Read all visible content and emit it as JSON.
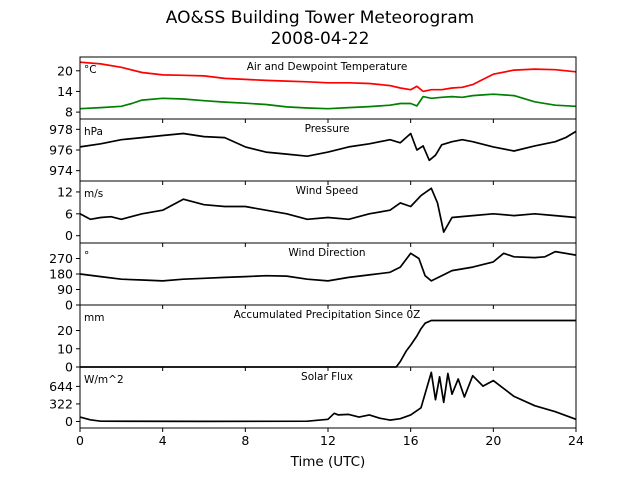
{
  "title": "AO&SS Building Tower Meteorogram",
  "subtitle": "2008-04-22",
  "xlabel": "Time (UTC)",
  "colors": {
    "temperature": "#ff0000",
    "dewpoint": "#008000",
    "default": "#000000"
  },
  "chart_data": [
    {
      "type": "line",
      "title": "Air and Dewpoint Temperature",
      "unit_label": "°C",
      "xlim": [
        0,
        24
      ],
      "ylim": [
        6,
        24
      ],
      "yticks": [
        8,
        14,
        20
      ],
      "series": [
        {
          "color": "#ff0000",
          "x": [
            0,
            1,
            2,
            3,
            4,
            5,
            6,
            7,
            8,
            9,
            10,
            11,
            12,
            13,
            14,
            15,
            15.5,
            16,
            16.3,
            16.6,
            17,
            17.5,
            18,
            18.5,
            19,
            19.5,
            20,
            21,
            22,
            23,
            24
          ],
          "y": [
            22.5,
            22,
            21,
            19.5,
            18.8,
            18.7,
            18.5,
            17.8,
            17.5,
            17.2,
            17,
            16.8,
            16.5,
            16.5,
            16.3,
            15.7,
            15,
            14.5,
            15.5,
            14,
            14.5,
            14.5,
            15,
            15.2,
            16,
            17.5,
            19,
            20.2,
            20.5,
            20.3,
            19.7
          ]
        },
        {
          "color": "#008000",
          "x": [
            0,
            1,
            2,
            2.5,
            3,
            4,
            5,
            6,
            7,
            8,
            9,
            10,
            11,
            12,
            13,
            14,
            15,
            15.5,
            16,
            16.3,
            16.6,
            17,
            17.5,
            18,
            18.5,
            19,
            19.5,
            20,
            21,
            22,
            23,
            24
          ],
          "y": [
            9,
            9.3,
            9.7,
            10.5,
            11.5,
            12,
            11.8,
            11.3,
            10.9,
            10.6,
            10.2,
            9.5,
            9.2,
            9,
            9.3,
            9.6,
            10,
            10.5,
            10.5,
            9.8,
            12.5,
            12,
            12.3,
            12.5,
            12.3,
            12.8,
            13,
            13.2,
            12.8,
            11,
            10,
            9.7
          ]
        }
      ]
    },
    {
      "type": "line",
      "title": "Pressure",
      "unit_label": "hPa",
      "xlim": [
        0,
        24
      ],
      "ylim": [
        973,
        979
      ],
      "yticks": [
        974,
        976,
        978
      ],
      "series": [
        {
          "color": "#000000",
          "x": [
            0,
            1,
            2,
            3,
            4,
            5,
            6,
            7,
            8,
            9,
            10,
            11,
            12,
            13,
            14,
            15,
            15.5,
            16,
            16.3,
            16.6,
            16.9,
            17.2,
            17.5,
            18,
            18.5,
            19,
            20,
            21,
            22,
            23,
            23.5,
            24
          ],
          "y": [
            976.3,
            976.6,
            977,
            977.2,
            977.4,
            977.6,
            977.3,
            977.2,
            976.3,
            975.8,
            975.6,
            975.4,
            975.8,
            976.3,
            976.6,
            977,
            976.7,
            977.6,
            976,
            976.4,
            975,
            975.5,
            976.5,
            976.8,
            977,
            976.8,
            976.3,
            975.9,
            976.4,
            976.8,
            977.2,
            977.8
          ]
        }
      ]
    },
    {
      "type": "line",
      "title": "Wind Speed",
      "unit_label": "m/s",
      "xlim": [
        0,
        24
      ],
      "ylim": [
        -2,
        15
      ],
      "yticks": [
        0,
        6,
        12
      ],
      "series": [
        {
          "color": "#000000",
          "x": [
            0,
            0.5,
            1,
            1.5,
            2,
            3,
            4,
            4.5,
            5,
            6,
            7,
            8,
            9,
            10,
            11,
            12,
            13,
            14,
            15,
            15.5,
            16,
            16.5,
            17,
            17.3,
            17.6,
            18,
            19,
            20,
            21,
            22,
            23,
            24
          ],
          "y": [
            6,
            4.5,
            5,
            5.2,
            4.5,
            6,
            7,
            8.5,
            10,
            8.5,
            8,
            8,
            7,
            6,
            4.5,
            5,
            4.5,
            6,
            7,
            9,
            8,
            11,
            13,
            9,
            1,
            5,
            5.5,
            6,
            5.5,
            6,
            5.5,
            5
          ]
        }
      ]
    },
    {
      "type": "line",
      "title": "Wind Direction",
      "unit_label": "°",
      "xlim": [
        0,
        24
      ],
      "ylim": [
        0,
        360
      ],
      "yticks": [
        0,
        90,
        180,
        270
      ],
      "series": [
        {
          "color": "#000000",
          "x": [
            0,
            1,
            2,
            3,
            4,
            5,
            6,
            7,
            8,
            9,
            10,
            11,
            12,
            13,
            14,
            15,
            15.5,
            16,
            16.4,
            16.7,
            17,
            17.5,
            18,
            19,
            20,
            20.5,
            21,
            22,
            22.5,
            23,
            24
          ],
          "y": [
            180,
            165,
            150,
            145,
            140,
            150,
            155,
            160,
            165,
            170,
            168,
            150,
            140,
            160,
            175,
            190,
            220,
            300,
            270,
            170,
            140,
            170,
            200,
            220,
            250,
            300,
            280,
            275,
            280,
            310,
            290
          ]
        }
      ]
    },
    {
      "type": "line",
      "title": "Accumulated Precipitation Since 0Z",
      "unit_label": "mm",
      "xlim": [
        0,
        24
      ],
      "ylim": [
        0,
        34
      ],
      "yticks": [
        0,
        10,
        20
      ],
      "series": [
        {
          "color": "#000000",
          "x": [
            0,
            15.3,
            15.5,
            15.8,
            16,
            16.3,
            16.5,
            16.7,
            17,
            24
          ],
          "y": [
            0,
            0,
            3,
            9,
            12,
            17,
            21,
            24,
            25.5,
            25.5
          ]
        }
      ]
    },
    {
      "type": "line",
      "title": "Solar Flux",
      "unit_label": "W/m^2",
      "xlim": [
        0,
        24
      ],
      "ylim": [
        -120,
        1000
      ],
      "yticks": [
        0,
        322,
        644
      ],
      "series": [
        {
          "color": "#000000",
          "x": [
            0,
            0.5,
            1,
            6,
            11,
            12,
            12.3,
            12.5,
            13,
            13.5,
            14,
            14.5,
            15,
            15.5,
            16,
            16.5,
            17,
            17.2,
            17.4,
            17.6,
            17.8,
            18,
            18.3,
            18.6,
            19,
            19.5,
            20,
            21,
            22,
            23,
            24
          ],
          "y": [
            80,
            30,
            5,
            2,
            5,
            40,
            150,
            120,
            130,
            80,
            120,
            60,
            25,
            50,
            120,
            250,
            900,
            400,
            820,
            350,
            880,
            500,
            780,
            450,
            840,
            650,
            750,
            460,
            290,
            180,
            40
          ]
        }
      ]
    }
  ]
}
